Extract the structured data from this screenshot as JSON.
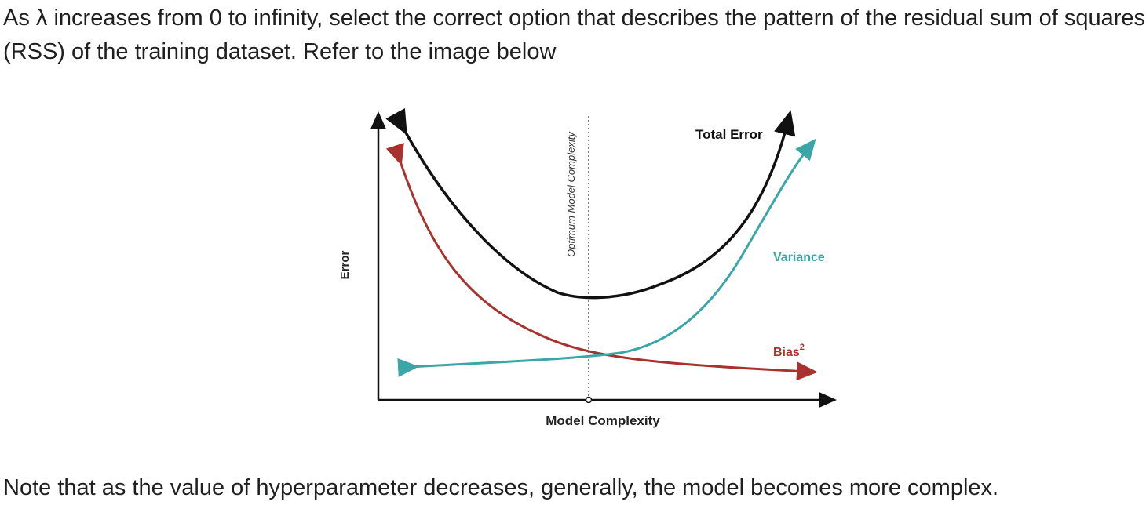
{
  "question": {
    "part1": "As ",
    "lambda": "λ",
    "part2": " increases from 0 to infinity, select the correct option that describes the pattern of the residual sum of squares (RSS) of the training dataset. Refer to the image below"
  },
  "note": "Note that as the value of hyperparameter decreases, generally, the model becomes more complex.",
  "diagram": {
    "y_axis_label": "Error",
    "x_axis_label": "Model Complexity",
    "optimum_label": "Optimum Model Complexity",
    "curves": {
      "total_error": {
        "label": "Total Error",
        "color": "#111111"
      },
      "variance": {
        "label": "Variance",
        "color": "#3aa6a8"
      },
      "bias": {
        "label": "Bias",
        "superscript": "2",
        "color": "#a8322d"
      }
    },
    "axis_color": "#111111"
  }
}
